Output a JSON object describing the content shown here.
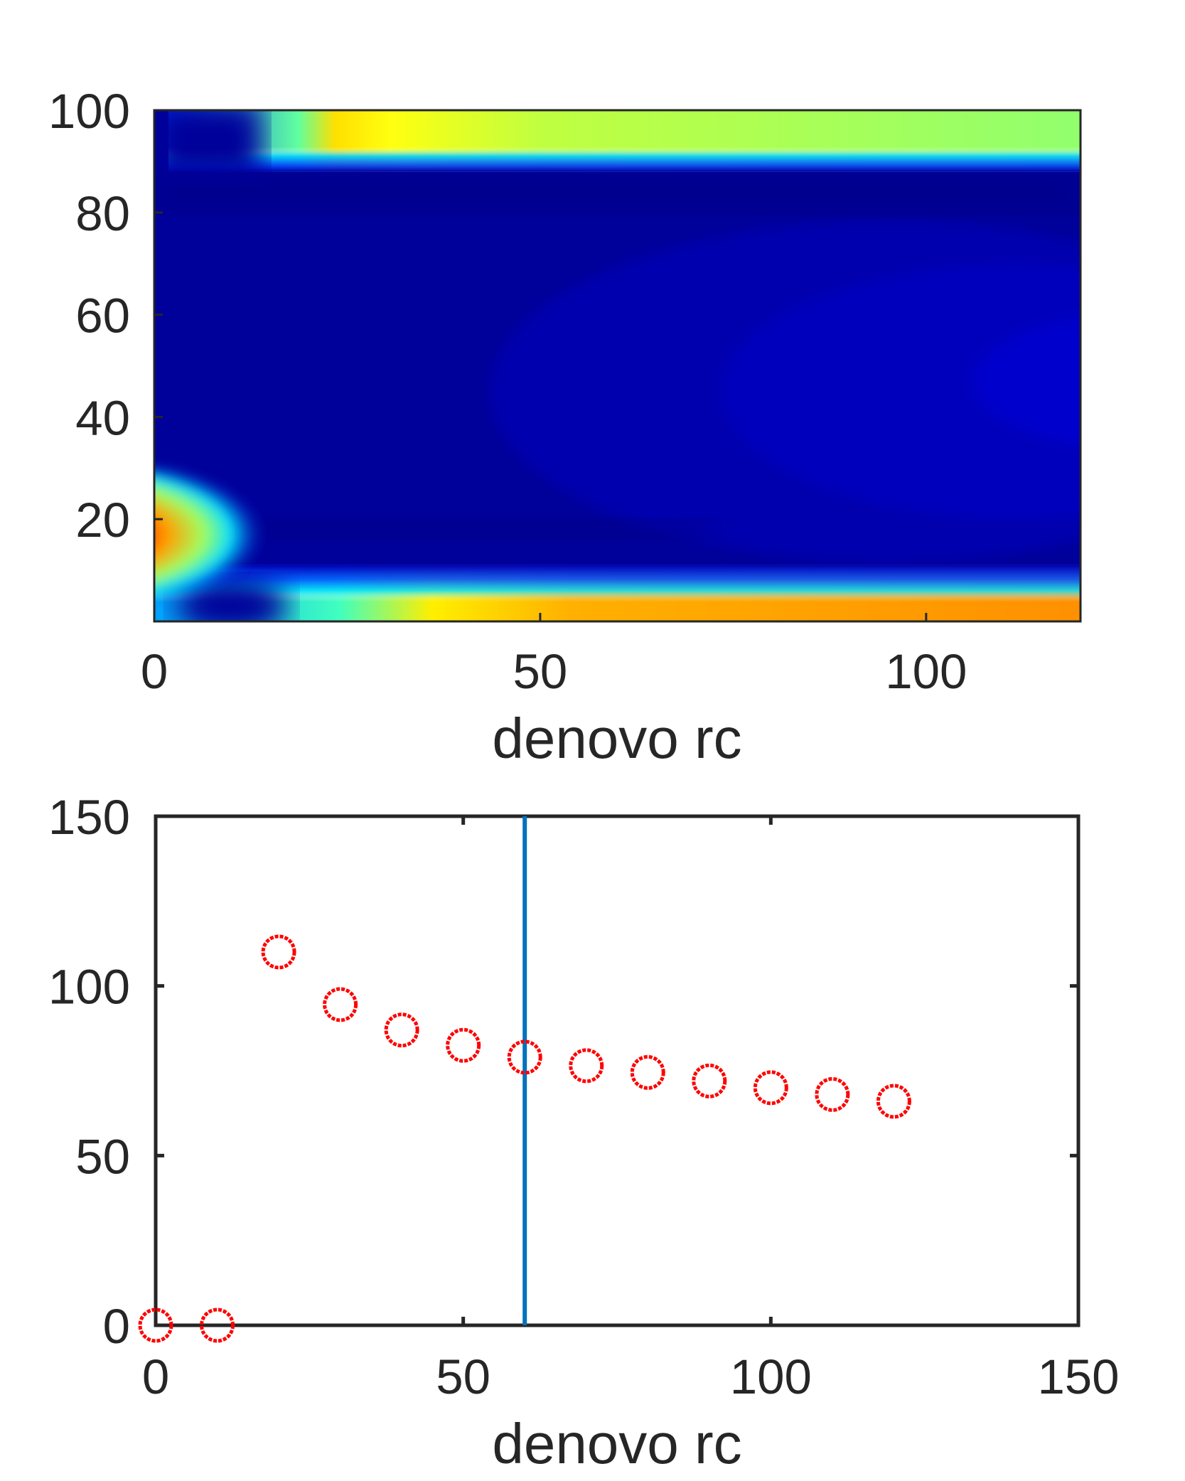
{
  "chart_data": [
    {
      "type": "heatmap",
      "xlabel": "denovo rc",
      "ylabel": "",
      "xlim": [
        0,
        120
      ],
      "ylim": [
        0,
        100
      ],
      "xticks": [
        0,
        50,
        100
      ],
      "xtick_labels": [
        "0",
        "50",
        "100"
      ],
      "yticks": [
        20,
        40,
        60,
        80,
        100
      ],
      "ytick_labels": [
        "20",
        "40",
        "60",
        "80",
        "100"
      ],
      "colormap": "jet",
      "grid": false,
      "features": [
        {
          "description": "high-value band along top edge",
          "y_range": [
            90,
            100
          ],
          "x_range": [
            15,
            120
          ],
          "level": 0.55,
          "peak_x": 22,
          "peak_level": 0.7
        },
        {
          "description": "hot spot at left",
          "x": 2,
          "y": 17,
          "level": 1.0
        },
        {
          "description": "band along bottom edge",
          "y_range": [
            0,
            5
          ],
          "x_range": [
            30,
            120
          ],
          "level": 0.75
        }
      ]
    },
    {
      "type": "scatter",
      "xlabel": "denovo rc",
      "ylabel": "",
      "xlim": [
        0,
        150
      ],
      "ylim": [
        0,
        150
      ],
      "xticks": [
        0,
        50,
        100,
        150
      ],
      "xtick_labels": [
        "0",
        "50",
        "100",
        "150"
      ],
      "yticks": [
        0,
        50,
        100,
        150
      ],
      "ytick_labels": [
        "0",
        "50",
        "100",
        "150"
      ],
      "grid": false,
      "series": [
        {
          "marker": "circle-open",
          "color": "#ff0000",
          "x": [
            0,
            10,
            20,
            30,
            40,
            50,
            60,
            70,
            80,
            90,
            100,
            110,
            120
          ],
          "y": [
            0,
            0,
            110,
            94.5,
            87,
            82.5,
            79,
            76.5,
            74.5,
            72,
            70,
            68,
            66
          ]
        }
      ],
      "vertical_line": {
        "x": 60,
        "color": "#0072bd"
      }
    }
  ]
}
